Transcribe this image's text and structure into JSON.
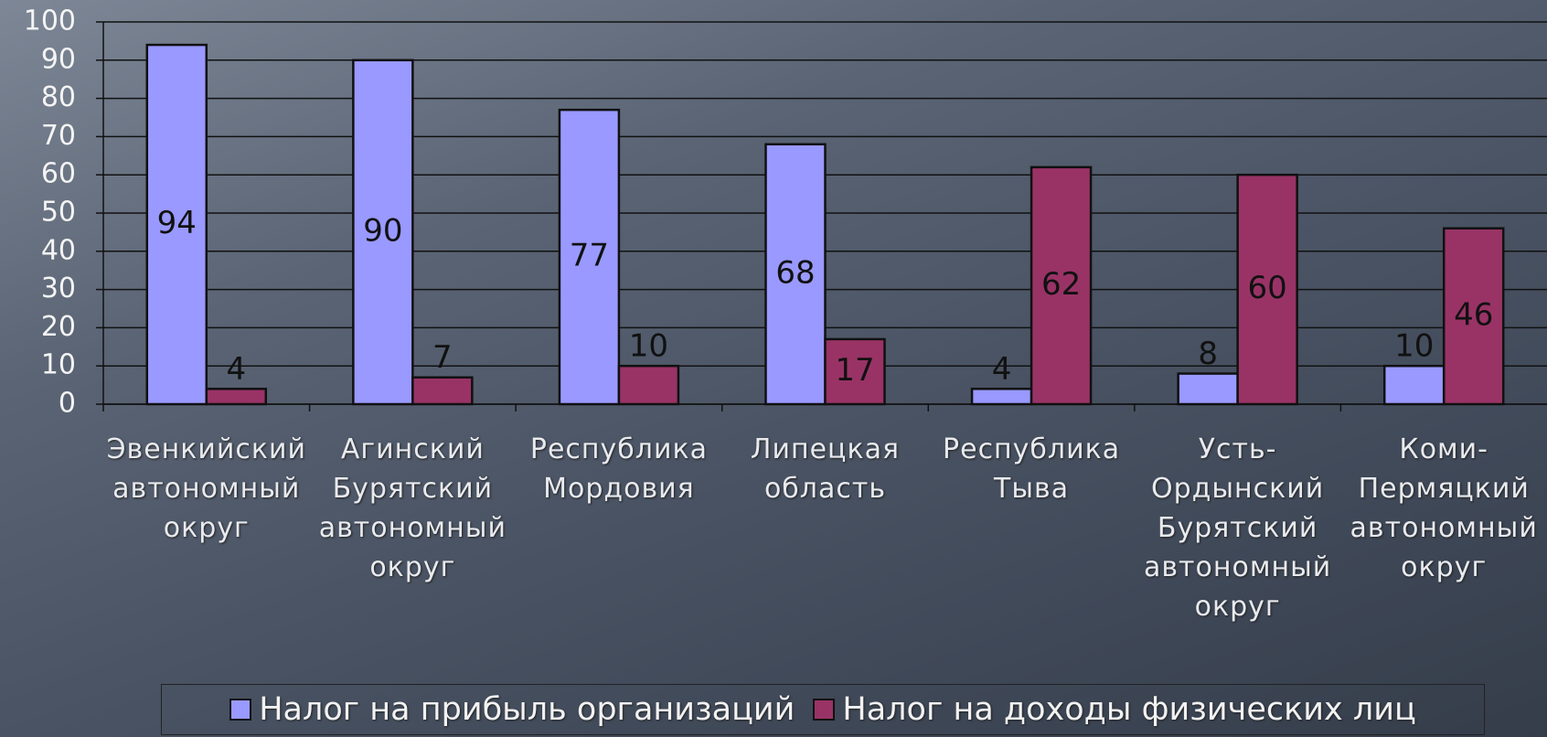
{
  "chart_data": {
    "type": "bar",
    "categories": [
      "Эвенкийский автономный округ",
      "Агинский Бурятский автономный округ",
      "Республика Мордовия",
      "Липецкая область",
      "Республика Тыва",
      "Усть-Ордынский Бурятский автономный округ",
      "Коми-Пермяцкий автономный округ"
    ],
    "series": [
      {
        "name": "Налог на прибыль организаций",
        "color": "#9999ff",
        "values": [
          94,
          90,
          77,
          68,
          4,
          8,
          10
        ]
      },
      {
        "name": "Налог на доходы физических лиц",
        "color": "#993366",
        "values": [
          4,
          7,
          10,
          17,
          62,
          60,
          46
        ]
      }
    ],
    "ylim": [
      0,
      100
    ],
    "yticks": [
      0,
      10,
      20,
      30,
      40,
      50,
      60,
      70,
      80,
      90,
      100
    ],
    "grid": true,
    "legend": "bottom"
  }
}
